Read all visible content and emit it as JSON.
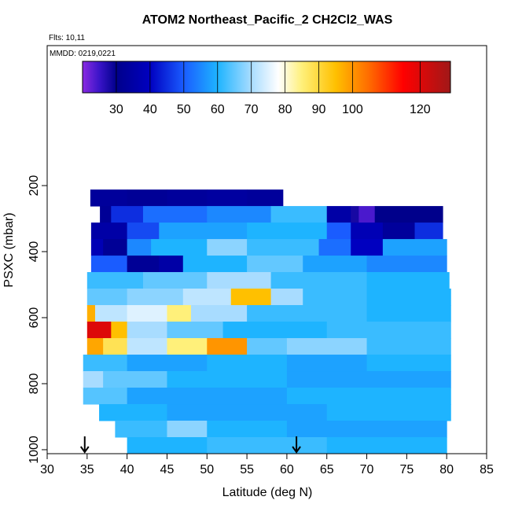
{
  "chart_data": {
    "type": "heatmap",
    "title": "ATOM2 Northeast_Pacific_2 CH2Cl2_WAS",
    "annotations": [
      "Flts: 10,11",
      "MMDD: 0219,0221"
    ],
    "x_label": "Latitude (deg N)",
    "y_label": "PSXC (mbar)",
    "xlim": [
      30,
      85
    ],
    "xticks": [
      30,
      35,
      40,
      45,
      50,
      55,
      60,
      65,
      70,
      75,
      80,
      85
    ],
    "ylim": [
      1012,
      -224
    ],
    "yticks": [
      200,
      400,
      600,
      800,
      1000
    ],
    "colorscale": {
      "lim": [
        20,
        129
      ],
      "ticks": [
        30,
        40,
        50,
        60,
        70,
        80,
        90,
        100,
        120
      ],
      "values": [
        20,
        25,
        30,
        40,
        50,
        60,
        70,
        78,
        85,
        95,
        105,
        115,
        129
      ],
      "colors": [
        "#8a2be2",
        "#3a14c8",
        "#00008b",
        "#0000c0",
        "#1a5cff",
        "#1eb4ff",
        "#a8dcff",
        "#ffffff",
        "#fff07a",
        "#ffc000",
        "#ff6a00",
        "#ff0000",
        "#a01818"
      ]
    },
    "rows": [
      {
        "p": [
          212,
          262
        ],
        "lat": [
          35.4,
          40,
          45,
          50,
          55,
          59.5
        ],
        "values": [
          33,
          32,
          33,
          34,
          33
        ]
      },
      {
        "p": [
          262,
          312
        ],
        "lat": [
          36.6,
          38,
          42,
          50,
          58,
          65,
          68,
          69,
          71,
          79.5
        ],
        "values": [
          32,
          45,
          52,
          55,
          62,
          35,
          28,
          24,
          30
        ]
      },
      {
        "p": [
          312,
          362
        ],
        "lat": [
          35.5,
          40,
          44,
          55,
          65,
          68,
          72,
          76,
          79.5
        ],
        "values": [
          35,
          48,
          58,
          60,
          50,
          38,
          33,
          45
        ]
      },
      {
        "p": [
          362,
          412
        ],
        "lat": [
          35.5,
          37,
          40,
          43,
          50,
          55,
          64,
          68,
          72,
          80
        ],
        "values": [
          38,
          32,
          55,
          60,
          68,
          62,
          52,
          40,
          58
        ]
      },
      {
        "p": [
          412,
          462
        ],
        "lat": [
          35.5,
          40,
          44,
          47,
          55,
          62,
          70,
          80
        ],
        "values": [
          50,
          32,
          35,
          60,
          65,
          58,
          55
        ]
      },
      {
        "p": [
          462,
          512
        ],
        "lat": [
          35,
          42,
          50,
          58,
          70,
          80.3
        ],
        "values": [
          62,
          65,
          70,
          62,
          60
        ]
      },
      {
        "p": [
          512,
          562
        ],
        "lat": [
          35,
          40,
          47,
          53,
          58,
          62,
          70,
          80.5
        ],
        "values": [
          65,
          68,
          72,
          95,
          70,
          62,
          60
        ]
      },
      {
        "p": [
          562,
          612
        ],
        "lat": [
          35,
          36,
          40,
          45,
          48,
          55,
          70,
          80.5
        ],
        "values": [
          97,
          72,
          75,
          85,
          70,
          62,
          60
        ]
      },
      {
        "p": [
          612,
          662
        ],
        "lat": [
          35,
          38,
          40,
          45,
          52,
          65,
          80.5
        ],
        "values": [
          120,
          95,
          70,
          65,
          60,
          62
        ]
      },
      {
        "p": [
          662,
          712
        ],
        "lat": [
          35,
          37,
          40,
          45,
          50,
          55,
          60,
          70,
          80.5
        ],
        "values": [
          98,
          88,
          72,
          85,
          100,
          65,
          68,
          62
        ]
      },
      {
        "p": [
          712,
          762
        ],
        "lat": [
          34.5,
          40,
          50,
          60,
          70,
          80.5
        ],
        "values": [
          62,
          58,
          60,
          58,
          60
        ]
      },
      {
        "p": [
          762,
          812
        ],
        "lat": [
          34.5,
          37,
          45,
          60,
          80.5
        ],
        "values": [
          70,
          65,
          60,
          58
        ]
      },
      {
        "p": [
          812,
          862
        ],
        "lat": [
          34.5,
          40,
          60,
          80.5
        ],
        "values": [
          64,
          58,
          60
        ]
      },
      {
        "p": [
          862,
          912
        ],
        "lat": [
          36.5,
          45,
          65,
          80.5
        ],
        "values": [
          60,
          58,
          60
        ]
      },
      {
        "p": [
          912,
          962
        ],
        "lat": [
          38.5,
          45,
          50,
          60,
          80
        ],
        "values": [
          62,
          68,
          60,
          58
        ]
      },
      {
        "p": [
          962,
          1012
        ],
        "lat": [
          40,
          50,
          65,
          80
        ],
        "values": [
          60,
          62,
          60
        ]
      }
    ],
    "arrows_lat": [
      34.7,
      61.2
    ]
  }
}
